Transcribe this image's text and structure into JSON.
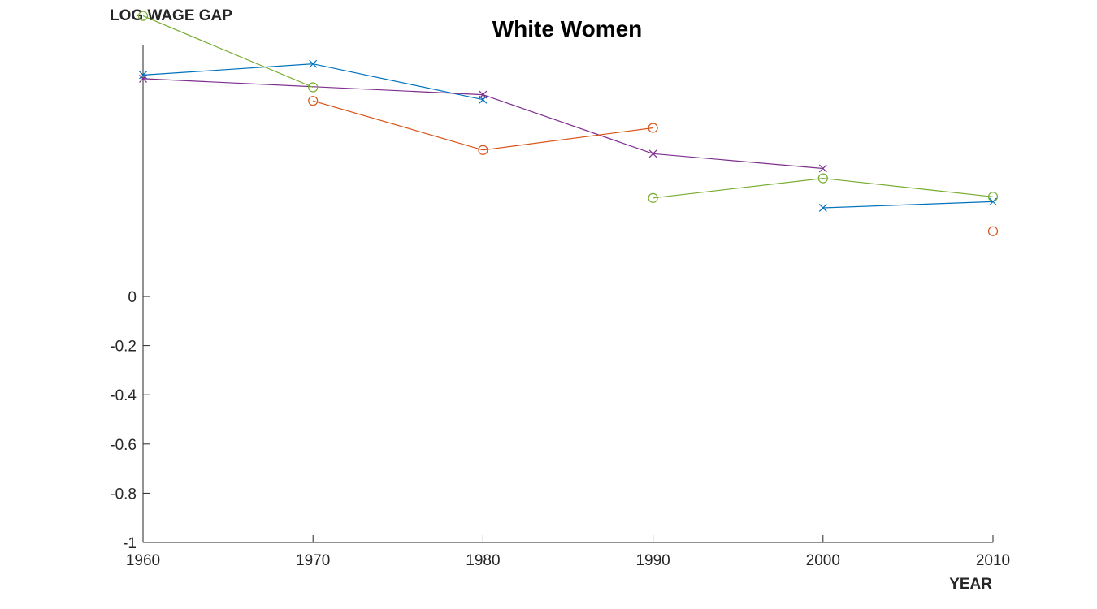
{
  "chart_data": {
    "type": "line",
    "title": "White Women",
    "ylabel": "LOG WAGE GAP",
    "xlabel": "YEAR",
    "xlim": [
      1960,
      2010
    ],
    "ylim": [
      -1,
      1.02
    ],
    "x_ticks": [
      1960,
      1970,
      1980,
      1990,
      2000,
      2010
    ],
    "y_ticks": [
      0,
      -0.2,
      -0.4,
      -0.6,
      -0.8,
      -1
    ],
    "y_tick_labels": [
      "0",
      "-0.2",
      "-0.4",
      "-0.6",
      "-0.8",
      "-1"
    ],
    "grid": false,
    "series": [
      {
        "color": "#0072BD",
        "marker": "x",
        "points": [
          [
            1960,
            0.9
          ],
          [
            1970,
            0.945
          ],
          [
            1980,
            0.8
          ]
        ]
      },
      {
        "color": "#7E2F8E",
        "marker": "x",
        "points": [
          [
            1960,
            0.885
          ],
          [
            1980,
            0.82
          ],
          [
            1990,
            0.58
          ],
          [
            2000,
            0.52
          ]
        ]
      },
      {
        "color": "#77AC30",
        "marker": "o",
        "points": [
          [
            1960,
            1.14
          ],
          [
            1970,
            0.85
          ]
        ]
      },
      {
        "color": "#D95319",
        "marker": "o",
        "points": [
          [
            1970,
            0.795
          ],
          [
            1980,
            0.595
          ],
          [
            1990,
            0.685
          ]
        ]
      },
      {
        "color": "#77AC30",
        "marker": "o",
        "points": [
          [
            1990,
            0.4
          ],
          [
            2000,
            0.48
          ],
          [
            2010,
            0.405
          ]
        ]
      },
      {
        "color": "#0072BD",
        "marker": "x",
        "points": [
          [
            2000,
            0.36
          ],
          [
            2010,
            0.385
          ]
        ]
      },
      {
        "color": "#D95319",
        "marker": "o",
        "points": [
          [
            2010,
            0.265
          ]
        ]
      }
    ]
  }
}
